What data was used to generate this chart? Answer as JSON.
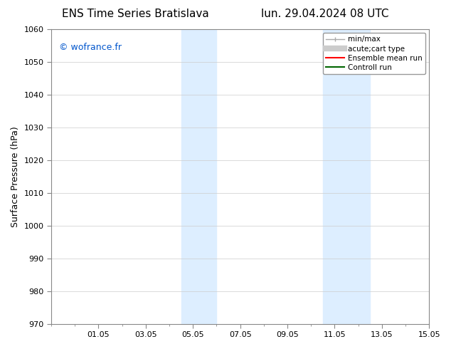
{
  "title_left": "ENS Time Series Bratislava",
  "title_right": "lun. 29.04.2024 08 UTC",
  "ylabel": "Surface Pressure (hPa)",
  "ylim": [
    970,
    1060
  ],
  "yticks": [
    970,
    980,
    990,
    1000,
    1010,
    1020,
    1030,
    1040,
    1050,
    1060
  ],
  "xlim_start": 29.0,
  "xlim_end": 45.0,
  "xtick_labels": [
    "01.05",
    "03.05",
    "05.05",
    "07.05",
    "09.05",
    "11.05",
    "13.05",
    "15.05"
  ],
  "xtick_positions": [
    31,
    33,
    35,
    37,
    39,
    41,
    43,
    45
  ],
  "shaded_bands": [
    {
      "xstart": 34.5,
      "xend": 36.0
    },
    {
      "xstart": 40.5,
      "xend": 42.5
    }
  ],
  "shaded_color": "#ddeeff",
  "watermark_text": "© wofrance.fr",
  "watermark_color": "#0055cc",
  "legend_entries": [
    {
      "label": "min/max",
      "color": "#aaaaaa",
      "lw": 1.5
    },
    {
      "label": "acute;cart type",
      "color": "#cccccc",
      "lw": 5
    },
    {
      "label": "Ensemble mean run",
      "color": "red",
      "lw": 1.5
    },
    {
      "label": "Controll run",
      "color": "green",
      "lw": 1.5
    }
  ],
  "bg_color": "#ffffff",
  "plot_bg_color": "#ffffff",
  "grid_color": "#cccccc",
  "title_fontsize": 11,
  "axis_fontsize": 9,
  "tick_fontsize": 8,
  "watermark_fontsize": 9
}
